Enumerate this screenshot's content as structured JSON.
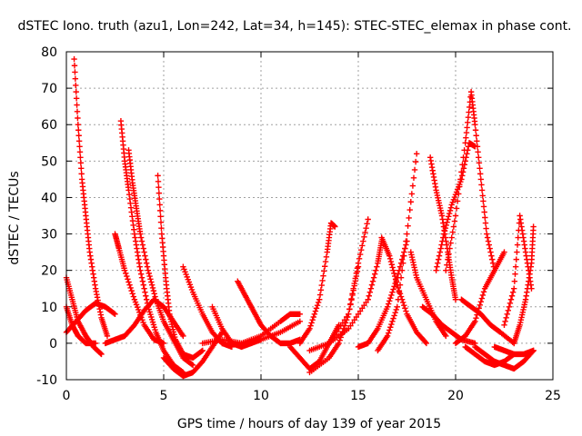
{
  "chart_data": {
    "type": "scatter",
    "title": "dSTEC Iono. truth (azu1, Lon=242, Lat=34, h=145): STEC-STEC_elemax in phase cont.",
    "xlabel": "GPS time / hours of day 139 of year 2015",
    "ylabel": "dSTEC  / TECUs",
    "xlim": [
      0,
      25
    ],
    "ylim": [
      -10,
      80
    ],
    "xticks": [
      "0",
      "5",
      "10",
      "15",
      "20",
      "25"
    ],
    "yticks": [
      "-10",
      "0",
      "10",
      "20",
      "30",
      "40",
      "50",
      "60",
      "70",
      "80"
    ],
    "grid": true,
    "marker": "+",
    "color": "#ff0000",
    "series": [
      {
        "x": [
          0.0,
          0.3,
          0.6,
          1.0,
          1.4,
          1.8
        ],
        "y": [
          18,
          12,
          6,
          2,
          -1,
          -3
        ]
      },
      {
        "x": [
          0.0,
          0.3,
          0.6,
          1.0,
          1.5
        ],
        "y": [
          10,
          5,
          2,
          0,
          0
        ]
      },
      {
        "x": [
          0.4,
          0.6,
          0.8,
          1.0,
          1.2,
          1.5,
          1.8,
          2.1
        ],
        "y": [
          78,
          60,
          45,
          35,
          25,
          15,
          7,
          2
        ]
      },
      {
        "x": [
          0.0,
          0.5,
          1.0,
          1.5,
          2.0,
          2.5
        ],
        "y": [
          3,
          6,
          9,
          11,
          10,
          8
        ]
      },
      {
        "x": [
          2.5,
          2.7,
          3.0,
          3.5,
          4.0,
          4.5,
          5.0
        ],
        "y": [
          30,
          26,
          20,
          12,
          5,
          1,
          0
        ]
      },
      {
        "x": [
          2.8,
          3.0,
          3.2,
          3.5,
          3.8,
          4.2,
          4.6,
          5.0,
          5.5,
          6.0
        ],
        "y": [
          61,
          50,
          42,
          30,
          20,
          10,
          3,
          -2,
          -6,
          -8
        ]
      },
      {
        "x": [
          3.2,
          3.4,
          3.6,
          3.8,
          4.2,
          4.6,
          5.0,
          5.5,
          6.0,
          6.5
        ],
        "y": [
          53,
          44,
          37,
          30,
          20,
          12,
          6,
          1,
          -4,
          -6
        ]
      },
      {
        "x": [
          2.0,
          2.5,
          3.0,
          3.5,
          4.0,
          4.5,
          5.0,
          5.5,
          6.0
        ],
        "y": [
          0,
          1,
          2,
          5,
          9,
          12,
          10,
          6,
          2
        ]
      },
      {
        "x": [
          4.7,
          4.9,
          5.1,
          5.3,
          5.6,
          6.0,
          6.5,
          7.0
        ],
        "y": [
          46,
          30,
          18,
          8,
          1,
          -3,
          -4,
          -2
        ]
      },
      {
        "x": [
          6.0,
          6.5,
          7.0,
          7.5,
          8.0,
          8.5
        ],
        "y": [
          21,
          14,
          8,
          3,
          0,
          -1
        ]
      },
      {
        "x": [
          5.0,
          5.5,
          6.0,
          6.5,
          7.0,
          7.5,
          8.0
        ],
        "y": [
          -4,
          -7,
          -9,
          -8,
          -5,
          -1,
          3
        ]
      },
      {
        "x": [
          7.5,
          8.0,
          8.5,
          9.0,
          9.5,
          10.0
        ],
        "y": [
          10,
          4,
          0,
          -1,
          0,
          1
        ]
      },
      {
        "x": [
          7.0,
          8.0,
          9.0,
          10.0,
          11.0,
          12.0
        ],
        "y": [
          0,
          1,
          0,
          1,
          3,
          6
        ]
      },
      {
        "x": [
          8.8,
          9.2,
          9.6,
          10.0,
          10.5,
          11.0,
          11.5,
          12.0
        ],
        "y": [
          17,
          13,
          9,
          5,
          2,
          0,
          0,
          1
        ]
      },
      {
        "x": [
          8.0,
          9.0,
          10.0,
          11.0,
          11.5,
          12.0
        ],
        "y": [
          0,
          0,
          2,
          6,
          8,
          8
        ]
      },
      {
        "x": [
          11.5,
          12.0,
          12.5,
          13.0,
          13.5,
          14.0
        ],
        "y": [
          -1,
          -4,
          -7,
          -5,
          0,
          5
        ]
      },
      {
        "x": [
          12.0,
          12.5,
          13.0,
          13.4,
          13.6,
          13.8
        ],
        "y": [
          0,
          4,
          12,
          25,
          33,
          32
        ]
      },
      {
        "x": [
          12.5,
          13.5,
          14.5,
          15.0,
          15.5
        ],
        "y": [
          -2,
          0,
          8,
          22,
          34
        ]
      },
      {
        "x": [
          12.5,
          13.5,
          14.0,
          14.5,
          15.0
        ],
        "y": [
          -8,
          -4,
          0,
          8,
          21
        ]
      },
      {
        "x": [
          13.5,
          14.5,
          15.5,
          16.0,
          16.2
        ],
        "y": [
          0,
          4,
          12,
          22,
          28
        ]
      },
      {
        "x": [
          15.0,
          15.5,
          16.0,
          16.5,
          17.0,
          17.5
        ],
        "y": [
          -1,
          0,
          4,
          10,
          18,
          28
        ]
      },
      {
        "x": [
          16.0,
          16.5,
          17.0,
          17.5,
          18.0
        ],
        "y": [
          -2,
          2,
          10,
          30,
          52
        ]
      },
      {
        "x": [
          16.2,
          16.6,
          17.0,
          17.5,
          18.0,
          18.5
        ],
        "y": [
          29,
          24,
          16,
          8,
          3,
          0
        ]
      },
      {
        "x": [
          17.7,
          18.0,
          18.5,
          19.0,
          19.5
        ],
        "y": [
          25,
          18,
          12,
          6,
          2
        ]
      },
      {
        "x": [
          18.3,
          18.8,
          19.3,
          19.8,
          20.3,
          21.0
        ],
        "y": [
          10,
          8,
          5,
          3,
          1,
          0
        ]
      },
      {
        "x": [
          18.7,
          19.0,
          19.3,
          19.6,
          19.8,
          20.0
        ],
        "y": [
          51,
          42,
          35,
          25,
          18,
          12
        ]
      },
      {
        "x": [
          19.0,
          19.4,
          19.8,
          20.3,
          20.7,
          21.0
        ],
        "y": [
          20,
          30,
          38,
          45,
          55,
          54
        ]
      },
      {
        "x": [
          19.5,
          20.0,
          20.5,
          20.8,
          21.0,
          21.3,
          21.6,
          22.0
        ],
        "y": [
          20,
          35,
          55,
          69,
          60,
          45,
          30,
          20
        ]
      },
      {
        "x": [
          20.3,
          20.8,
          21.3,
          21.8,
          22.3,
          23.0
        ],
        "y": [
          12,
          10,
          8,
          5,
          3,
          0
        ]
      },
      {
        "x": [
          20.0,
          20.5,
          21.0,
          21.5,
          22.0,
          22.5
        ],
        "y": [
          0,
          2,
          6,
          15,
          20,
          25
        ]
      },
      {
        "x": [
          20.5,
          21.0,
          21.5,
          22.0,
          22.5,
          23.0
        ],
        "y": [
          -1,
          -3,
          -5,
          -6,
          -5,
          -3
        ]
      },
      {
        "x": [
          21.0,
          21.5,
          22.0,
          22.5,
          23.0,
          23.5,
          24.0
        ],
        "y": [
          -1,
          -3,
          -5,
          -6,
          -7,
          -5,
          -2
        ]
      },
      {
        "x": [
          22.5,
          23.0,
          23.3,
          23.6,
          23.9
        ],
        "y": [
          5,
          15,
          35,
          25,
          15
        ]
      },
      {
        "x": [
          23.0,
          23.3,
          23.6,
          23.9,
          24.0
        ],
        "y": [
          0,
          5,
          12,
          22,
          32
        ]
      },
      {
        "x": [
          22.0,
          22.5,
          23.0,
          23.5,
          24.0
        ],
        "y": [
          -1,
          -2,
          -3,
          -3,
          -2
        ]
      }
    ]
  }
}
